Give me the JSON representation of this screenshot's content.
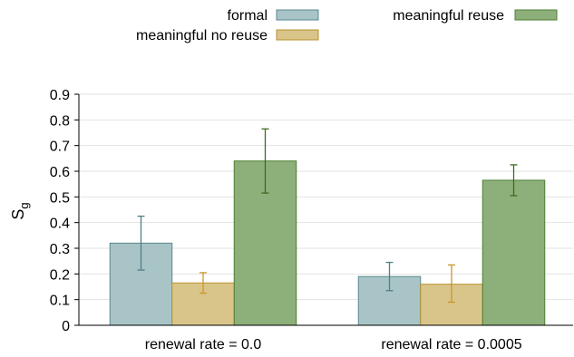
{
  "chart_data": {
    "type": "bar",
    "categories": [
      "renewal rate = 0.0",
      "renewal rate = 0.0005"
    ],
    "series": [
      {
        "name": "formal",
        "values": [
          0.32,
          0.19
        ],
        "err_low": [
          0.215,
          0.135
        ],
        "err_high": [
          0.425,
          0.245
        ],
        "fill": "#a8c4c6",
        "stroke": "#5a8a90",
        "err_color": "#4f7f88"
      },
      {
        "name": "meaningful no reuse",
        "values": [
          0.165,
          0.16
        ],
        "err_low": [
          0.125,
          0.09
        ],
        "err_high": [
          0.205,
          0.235
        ],
        "fill": "#d9c58a",
        "stroke": "#b8922e",
        "err_color": "#c9982a"
      },
      {
        "name": "meaningful reuse",
        "values": [
          0.64,
          0.565
        ],
        "err_low": [
          0.515,
          0.505
        ],
        "err_high": [
          0.765,
          0.625
        ],
        "fill": "#8db07a",
        "stroke": "#4e7e32",
        "err_color": "#3d6b22"
      }
    ],
    "title": "",
    "xlabel": "",
    "ylabel": "S",
    "ylabel_subscript": "g",
    "ylim": [
      0,
      0.9
    ],
    "yticks": [
      "0",
      "0.1",
      "0.2",
      "0.3",
      "0.4",
      "0.5",
      "0.6",
      "0.7",
      "0.8",
      "0.9"
    ],
    "grid": true,
    "legend_position": "top"
  }
}
